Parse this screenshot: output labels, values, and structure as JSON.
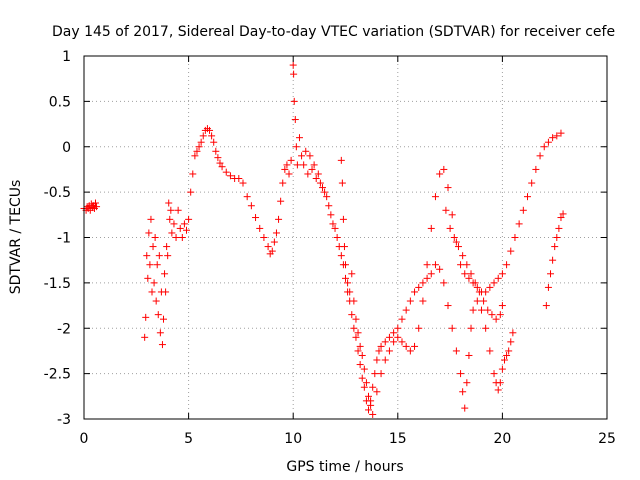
{
  "chart_data": {
    "type": "scatter",
    "title": "Day 145 of 2017, Sidereal Day-to-day VTEC variation (SDTVAR) for receiver cefe",
    "xlabel": "GPS time / hours",
    "ylabel": "SDTVAR / TECUs",
    "xlim": [
      0,
      25
    ],
    "ylim": [
      -3,
      1
    ],
    "xticks": [
      0,
      5,
      10,
      15,
      20,
      25
    ],
    "xtick_labels": [
      "0",
      "5",
      "10",
      "15",
      "20",
      "25"
    ],
    "yticks": [
      1,
      0.5,
      0,
      -0.5,
      -1,
      -1.5,
      -2,
      -2.5,
      -3
    ],
    "ytick_labels": [
      "1",
      "0.5",
      "0",
      "-0.5",
      "-1",
      "-1.5",
      "-2",
      "-2.5",
      "-3"
    ],
    "grid": true,
    "marker": "+",
    "color": "#ff0000",
    "series": [
      {
        "name": "SDTVAR",
        "points": [
          [
            0.0,
            -0.68
          ],
          [
            0.1,
            -0.7
          ],
          [
            0.15,
            -0.66
          ],
          [
            0.2,
            -0.68
          ],
          [
            0.25,
            -0.65
          ],
          [
            0.3,
            -0.7
          ],
          [
            0.35,
            -0.63
          ],
          [
            0.4,
            -0.67
          ],
          [
            0.45,
            -0.65
          ],
          [
            0.5,
            -0.68
          ],
          [
            0.55,
            -0.62
          ],
          [
            0.6,
            -0.66
          ],
          [
            2.9,
            -2.1
          ],
          [
            2.95,
            -1.88
          ],
          [
            3.0,
            -1.2
          ],
          [
            3.05,
            -1.45
          ],
          [
            3.1,
            -0.95
          ],
          [
            3.15,
            -1.3
          ],
          [
            3.2,
            -0.8
          ],
          [
            3.25,
            -1.6
          ],
          [
            3.3,
            -1.1
          ],
          [
            3.35,
            -1.5
          ],
          [
            3.4,
            -1.0
          ],
          [
            3.45,
            -1.7
          ],
          [
            3.5,
            -1.3
          ],
          [
            3.55,
            -1.85
          ],
          [
            3.6,
            -1.2
          ],
          [
            3.65,
            -2.05
          ],
          [
            3.7,
            -1.6
          ],
          [
            3.75,
            -2.18
          ],
          [
            3.8,
            -1.9
          ],
          [
            3.85,
            -1.4
          ],
          [
            3.9,
            -1.6
          ],
          [
            3.95,
            -1.1
          ],
          [
            4.0,
            -1.2
          ],
          [
            4.05,
            -0.62
          ],
          [
            4.1,
            -0.8
          ],
          [
            4.15,
            -0.7
          ],
          [
            4.2,
            -0.95
          ],
          [
            4.3,
            -0.85
          ],
          [
            4.4,
            -1.0
          ],
          [
            4.5,
            -0.7
          ],
          [
            4.6,
            -0.9
          ],
          [
            4.7,
            -1.0
          ],
          [
            4.8,
            -0.85
          ],
          [
            4.9,
            -0.92
          ],
          [
            5.0,
            -0.8
          ],
          [
            5.1,
            -0.5
          ],
          [
            5.2,
            -0.3
          ],
          [
            5.3,
            -0.1
          ],
          [
            5.4,
            -0.05
          ],
          [
            5.5,
            0.0
          ],
          [
            5.6,
            0.05
          ],
          [
            5.7,
            0.12
          ],
          [
            5.8,
            0.18
          ],
          [
            5.9,
            0.2
          ],
          [
            6.0,
            0.18
          ],
          [
            6.1,
            0.12
          ],
          [
            6.2,
            0.05
          ],
          [
            6.3,
            -0.05
          ],
          [
            6.4,
            -0.12
          ],
          [
            6.5,
            -0.18
          ],
          [
            6.6,
            -0.22
          ],
          [
            6.8,
            -0.28
          ],
          [
            7.0,
            -0.32
          ],
          [
            7.2,
            -0.35
          ],
          [
            7.4,
            -0.35
          ],
          [
            7.6,
            -0.4
          ],
          [
            7.8,
            -0.55
          ],
          [
            8.0,
            -0.65
          ],
          [
            8.2,
            -0.78
          ],
          [
            8.4,
            -0.9
          ],
          [
            8.6,
            -1.0
          ],
          [
            8.8,
            -1.1
          ],
          [
            8.9,
            -1.18
          ],
          [
            9.0,
            -1.15
          ],
          [
            9.1,
            -1.05
          ],
          [
            9.2,
            -0.95
          ],
          [
            9.3,
            -0.8
          ],
          [
            9.4,
            -0.6
          ],
          [
            9.5,
            -0.4
          ],
          [
            9.6,
            -0.25
          ],
          [
            9.7,
            -0.2
          ],
          [
            9.8,
            -0.3
          ],
          [
            9.9,
            -0.15
          ],
          [
            10.0,
            0.9
          ],
          [
            10.02,
            0.8
          ],
          [
            10.05,
            0.5
          ],
          [
            10.1,
            0.3
          ],
          [
            10.15,
            0.0
          ],
          [
            10.2,
            -0.2
          ],
          [
            10.3,
            0.1
          ],
          [
            10.4,
            -0.1
          ],
          [
            10.5,
            -0.2
          ],
          [
            10.6,
            -0.05
          ],
          [
            10.7,
            -0.3
          ],
          [
            10.8,
            -0.1
          ],
          [
            10.9,
            -0.25
          ],
          [
            11.0,
            -0.2
          ],
          [
            11.1,
            -0.35
          ],
          [
            11.2,
            -0.3
          ],
          [
            11.3,
            -0.4
          ],
          [
            11.4,
            -0.45
          ],
          [
            11.5,
            -0.5
          ],
          [
            11.6,
            -0.55
          ],
          [
            11.7,
            -0.65
          ],
          [
            11.8,
            -0.75
          ],
          [
            11.9,
            -0.85
          ],
          [
            12.0,
            -0.9
          ],
          [
            12.1,
            -1.0
          ],
          [
            12.2,
            -1.1
          ],
          [
            12.3,
            -1.2
          ],
          [
            12.4,
            -1.3
          ],
          [
            12.5,
            -1.45
          ],
          [
            12.6,
            -1.6
          ],
          [
            12.7,
            -1.7
          ],
          [
            12.8,
            -1.85
          ],
          [
            12.9,
            -2.0
          ],
          [
            13.0,
            -2.1
          ],
          [
            13.1,
            -2.25
          ],
          [
            13.2,
            -2.4
          ],
          [
            13.3,
            -2.55
          ],
          [
            13.4,
            -2.65
          ],
          [
            13.5,
            -2.8
          ],
          [
            13.6,
            -2.9
          ],
          [
            13.7,
            -2.8
          ],
          [
            13.8,
            -2.65
          ],
          [
            13.9,
            -2.5
          ],
          [
            14.0,
            -2.35
          ],
          [
            14.1,
            -2.25
          ],
          [
            14.2,
            -2.2
          ],
          [
            14.4,
            -2.15
          ],
          [
            14.6,
            -2.1
          ],
          [
            14.8,
            -2.05
          ],
          [
            15.0,
            -2.1
          ],
          [
            15.2,
            -2.15
          ],
          [
            15.4,
            -2.2
          ],
          [
            15.6,
            -2.25
          ],
          [
            15.8,
            -2.2
          ],
          [
            16.0,
            -2.0
          ],
          [
            16.2,
            -1.7
          ],
          [
            16.4,
            -1.3
          ],
          [
            16.6,
            -0.9
          ],
          [
            16.8,
            -0.55
          ],
          [
            17.0,
            -0.3
          ],
          [
            17.2,
            -0.25
          ],
          [
            17.4,
            -0.45
          ],
          [
            17.6,
            -0.75
          ],
          [
            17.8,
            -1.05
          ],
          [
            18.0,
            -1.3
          ],
          [
            18.2,
            -1.4
          ],
          [
            18.4,
            -1.45
          ],
          [
            18.6,
            -1.5
          ],
          [
            18.8,
            -1.55
          ],
          [
            19.0,
            -1.6
          ],
          [
            19.2,
            -1.6
          ],
          [
            19.4,
            -1.55
          ],
          [
            19.6,
            -1.5
          ],
          [
            19.8,
            -1.45
          ],
          [
            20.0,
            -1.4
          ],
          [
            20.2,
            -1.3
          ],
          [
            20.4,
            -1.15
          ],
          [
            20.6,
            -1.0
          ],
          [
            20.8,
            -0.85
          ],
          [
            21.0,
            -0.7
          ],
          [
            21.2,
            -0.55
          ],
          [
            21.4,
            -0.4
          ],
          [
            21.6,
            -0.25
          ],
          [
            21.8,
            -0.1
          ],
          [
            22.0,
            0.0
          ],
          [
            22.2,
            0.05
          ],
          [
            22.4,
            0.1
          ],
          [
            22.6,
            0.12
          ],
          [
            22.8,
            0.15
          ],
          [
            12.3,
            -0.15
          ],
          [
            12.35,
            -0.4
          ],
          [
            12.4,
            -0.8
          ],
          [
            12.45,
            -1.1
          ],
          [
            12.5,
            -1.3
          ],
          [
            12.6,
            -1.5
          ],
          [
            12.7,
            -1.6
          ],
          [
            12.8,
            -1.4
          ],
          [
            12.9,
            -1.7
          ],
          [
            13.0,
            -1.9
          ],
          [
            13.1,
            -2.05
          ],
          [
            13.2,
            -2.2
          ],
          [
            13.3,
            -2.3
          ],
          [
            13.4,
            -2.45
          ],
          [
            13.5,
            -2.6
          ],
          [
            13.6,
            -2.75
          ],
          [
            13.7,
            -2.85
          ],
          [
            13.8,
            -2.95
          ],
          [
            14.0,
            -2.7
          ],
          [
            14.2,
            -2.5
          ],
          [
            14.4,
            -2.35
          ],
          [
            14.6,
            -2.25
          ],
          [
            14.8,
            -2.15
          ],
          [
            15.0,
            -2.0
          ],
          [
            15.2,
            -1.9
          ],
          [
            15.4,
            -1.8
          ],
          [
            15.6,
            -1.7
          ],
          [
            15.8,
            -1.6
          ],
          [
            16.0,
            -1.55
          ],
          [
            16.2,
            -1.5
          ],
          [
            16.4,
            -1.45
          ],
          [
            16.6,
            -1.4
          ],
          [
            16.8,
            -1.3
          ],
          [
            17.0,
            -1.35
          ],
          [
            17.2,
            -1.5
          ],
          [
            17.4,
            -1.75
          ],
          [
            17.6,
            -2.0
          ],
          [
            17.8,
            -2.25
          ],
          [
            18.0,
            -2.5
          ],
          [
            18.1,
            -2.7
          ],
          [
            18.2,
            -2.88
          ],
          [
            18.3,
            -2.6
          ],
          [
            18.4,
            -2.3
          ],
          [
            18.5,
            -2.0
          ],
          [
            18.6,
            -1.8
          ],
          [
            18.8,
            -1.7
          ],
          [
            19.0,
            -1.8
          ],
          [
            19.2,
            -2.0
          ],
          [
            19.4,
            -2.25
          ],
          [
            19.6,
            -2.5
          ],
          [
            19.7,
            -2.6
          ],
          [
            19.8,
            -2.68
          ],
          [
            19.9,
            -2.6
          ],
          [
            20.0,
            -2.45
          ],
          [
            20.1,
            -2.35
          ],
          [
            20.2,
            -2.3
          ],
          [
            20.3,
            -2.25
          ],
          [
            20.4,
            -2.15
          ],
          [
            20.5,
            -2.05
          ],
          [
            17.3,
            -0.7
          ],
          [
            17.5,
            -0.9
          ],
          [
            17.7,
            -1.0
          ],
          [
            17.9,
            -1.1
          ],
          [
            18.1,
            -1.2
          ],
          [
            18.3,
            -1.3
          ],
          [
            18.5,
            -1.4
          ],
          [
            18.7,
            -1.5
          ],
          [
            18.9,
            -1.6
          ],
          [
            19.1,
            -1.7
          ],
          [
            19.3,
            -1.8
          ],
          [
            19.5,
            -1.85
          ],
          [
            19.7,
            -1.9
          ],
          [
            19.9,
            -1.85
          ],
          [
            20.0,
            -1.75
          ],
          [
            22.1,
            -1.75
          ],
          [
            22.2,
            -1.55
          ],
          [
            22.3,
            -1.4
          ],
          [
            22.4,
            -1.25
          ],
          [
            22.5,
            -1.1
          ],
          [
            22.6,
            -1.0
          ],
          [
            22.7,
            -0.9
          ],
          [
            22.8,
            -0.78
          ],
          [
            22.9,
            -0.74
          ]
        ]
      }
    ]
  }
}
